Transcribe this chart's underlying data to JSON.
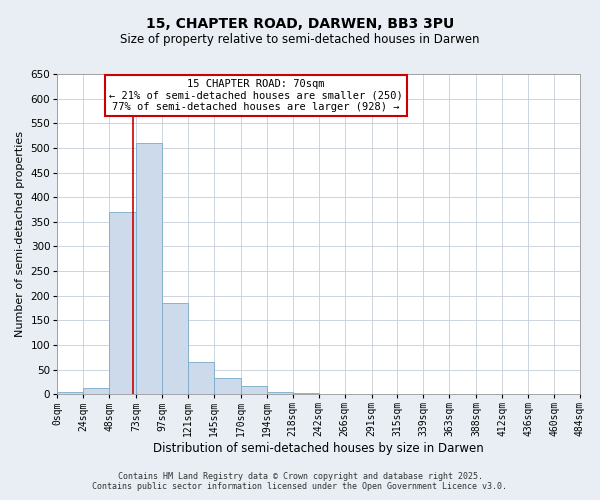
{
  "title": "15, CHAPTER ROAD, DARWEN, BB3 3PU",
  "subtitle": "Size of property relative to semi-detached houses in Darwen",
  "xlabel": "Distribution of semi-detached houses by size in Darwen",
  "ylabel": "Number of semi-detached properties",
  "bar_edges": [
    0,
    24,
    48,
    73,
    97,
    121,
    145,
    170,
    194,
    218,
    242,
    266,
    291,
    315,
    339,
    363,
    388,
    412,
    436,
    460,
    484
  ],
  "bar_heights": [
    5,
    12,
    370,
    510,
    185,
    65,
    32,
    17,
    5,
    3,
    0,
    0,
    0,
    0,
    0,
    0,
    0,
    0,
    0,
    0
  ],
  "bar_color": "#ccdaeb",
  "bar_edgecolor": "#7aaac8",
  "property_line_x": 70,
  "property_line_color": "#cc0000",
  "annotation_title": "15 CHAPTER ROAD: 70sqm",
  "annotation_line1": "← 21% of semi-detached houses are smaller (250)",
  "annotation_line2": "77% of semi-detached houses are larger (928) →",
  "annotation_box_color": "#cc0000",
  "ylim": [
    0,
    650
  ],
  "yticks": [
    0,
    50,
    100,
    150,
    200,
    250,
    300,
    350,
    400,
    450,
    500,
    550,
    600,
    650
  ],
  "xtick_labels": [
    "0sqm",
    "24sqm",
    "48sqm",
    "73sqm",
    "97sqm",
    "121sqm",
    "145sqm",
    "170sqm",
    "194sqm",
    "218sqm",
    "242sqm",
    "266sqm",
    "291sqm",
    "315sqm",
    "339sqm",
    "363sqm",
    "388sqm",
    "412sqm",
    "436sqm",
    "460sqm",
    "484sqm"
  ],
  "footer1": "Contains HM Land Registry data © Crown copyright and database right 2025.",
  "footer2": "Contains public sector information licensed under the Open Government Licence v3.0.",
  "bg_color": "#e8eef4",
  "plot_bg_color": "#ffffff",
  "title_fontsize": 10,
  "subtitle_fontsize": 8.5,
  "xlabel_fontsize": 8.5,
  "ylabel_fontsize": 8,
  "xtick_fontsize": 7,
  "ytick_fontsize": 7.5,
  "footer_fontsize": 6,
  "annot_fontsize": 7.5
}
